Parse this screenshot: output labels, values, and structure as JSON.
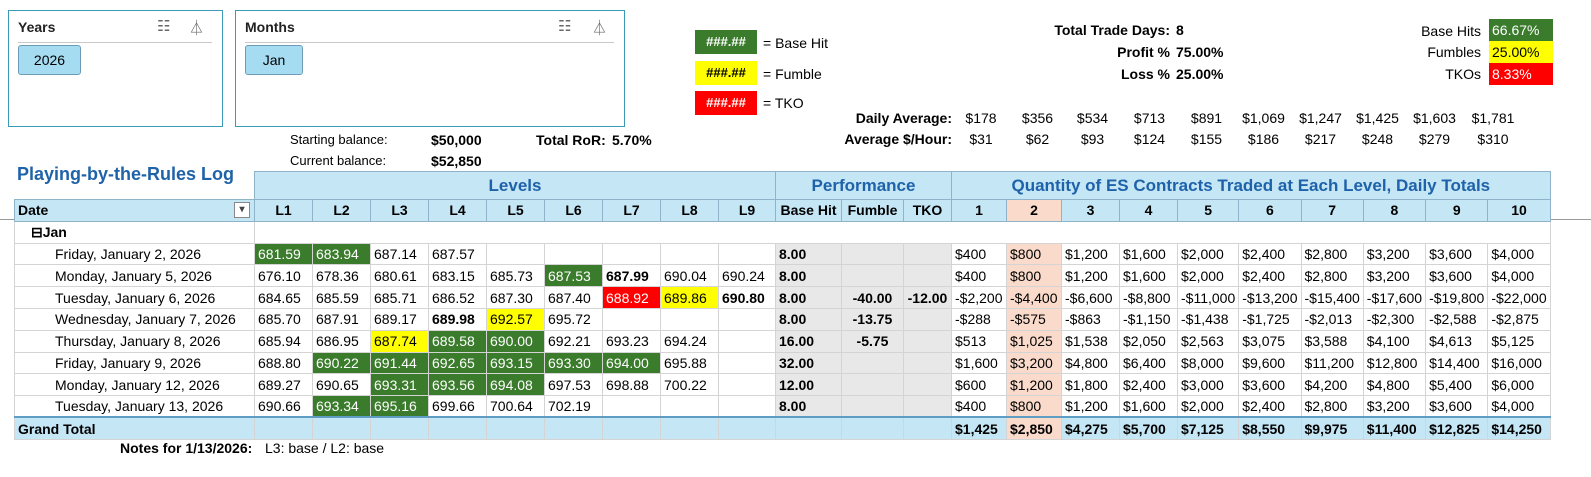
{
  "slicers": [
    {
      "title": "Years",
      "selected": "2026"
    },
    {
      "title": "Months",
      "selected": "Jan"
    }
  ],
  "legend": [
    {
      "sample": "###.##",
      "label": "= Base Hit",
      "color": "#3a7b2c"
    },
    {
      "sample": "###.##",
      "label": "= Fumble",
      "color": "#ffff00"
    },
    {
      "sample": "###.##",
      "label": "= TKO",
      "color": "#ff0000"
    }
  ],
  "balances": {
    "starting_label": "Starting balance:",
    "starting_value": "$50,000",
    "current_label": "Current balance:",
    "current_value": "$52,850",
    "ror_label": "Total RoR:",
    "ror_value": "5.70%"
  },
  "summary": {
    "trade_days_label": "Total Trade Days:",
    "trade_days_value": "8",
    "profit_label": "Profit %",
    "profit_value": "75.00%",
    "loss_label": "Loss %",
    "loss_value": "25.00%"
  },
  "outcomes": [
    {
      "label": "Base Hits",
      "value": "66.67%",
      "color": "#3a7b2c"
    },
    {
      "label": "Fumbles",
      "value": "25.00%",
      "color": "#ffff00"
    },
    {
      "label": "TKOs",
      "value": "8.33%",
      "color": "#ff0000"
    }
  ],
  "daily_average": {
    "label": "Daily Average:",
    "values": [
      "$178",
      "$356",
      "$534",
      "$713",
      "$891",
      "$1,069",
      "$1,247",
      "$1,425",
      "$1,603",
      "$1,781"
    ]
  },
  "avg_per_hour": {
    "label": "Average $/Hour:",
    "values": [
      "$31",
      "$62",
      "$93",
      "$124",
      "$155",
      "$186",
      "$217",
      "$248",
      "$279",
      "$310"
    ]
  },
  "log": {
    "title": "Playing-by-the-Rules Log",
    "group_levels": "Levels",
    "group_performance": "Performance",
    "group_quantity": "Quantity of ES Contracts Traded at Each Level, Daily Totals",
    "date_header": "Date",
    "level_headers": [
      "L1",
      "L2",
      "L3",
      "L4",
      "L5",
      "L6",
      "L7",
      "L8",
      "L9"
    ],
    "perf_headers": [
      "Base Hit",
      "Fumble",
      "TKO"
    ],
    "qty_headers": [
      "1",
      "2",
      "3",
      "4",
      "5",
      "6",
      "7",
      "8",
      "9",
      "10"
    ],
    "month_group": "Jan",
    "rows": [
      {
        "date": "Friday, January 2, 2026",
        "levels": [
          "681.59",
          "683.94",
          "687.14",
          "687.57",
          "",
          "",
          "",
          "",
          ""
        ],
        "perf": [
          "8.00",
          "",
          ""
        ],
        "qty": [
          "$400",
          "$800",
          "$1,200",
          "$1,600",
          "$2,000",
          "$2,400",
          "$2,800",
          "$3,200",
          "$3,600",
          "$4,000"
        ]
      },
      {
        "date": "Monday, January 5, 2026",
        "levels": [
          "676.10",
          "678.36",
          "680.61",
          "683.15",
          "685.73",
          "687.53",
          "687.99",
          "690.04",
          "690.24"
        ],
        "perf": [
          "8.00",
          "",
          ""
        ],
        "qty": [
          "$400",
          "$800",
          "$1,200",
          "$1,600",
          "$2,000",
          "$2,400",
          "$2,800",
          "$3,200",
          "$3,600",
          "$4,000"
        ]
      },
      {
        "date": "Tuesday, January 6, 2026",
        "levels": [
          "684.65",
          "685.59",
          "685.71",
          "686.52",
          "687.30",
          "687.40",
          "688.92",
          "689.86",
          "690.80"
        ],
        "perf": [
          "8.00",
          "-40.00",
          "-12.00"
        ],
        "qty": [
          "-$2,200",
          "-$4,400",
          "-$6,600",
          "-$8,800",
          "-$11,000",
          "-$13,200",
          "-$15,400",
          "-$17,600",
          "-$19,800",
          "-$22,000"
        ]
      },
      {
        "date": "Wednesday, January 7, 2026",
        "levels": [
          "685.70",
          "687.91",
          "689.17",
          "689.98",
          "692.57",
          "695.72",
          "",
          "",
          ""
        ],
        "perf": [
          "8.00",
          "-13.75",
          ""
        ],
        "qty": [
          "-$288",
          "-$575",
          "-$863",
          "-$1,150",
          "-$1,438",
          "-$1,725",
          "-$2,013",
          "-$2,300",
          "-$2,588",
          "-$2,875"
        ]
      },
      {
        "date": "Thursday, January 8, 2026",
        "levels": [
          "685.94",
          "686.95",
          "687.74",
          "689.58",
          "690.00",
          "692.21",
          "693.23",
          "694.24",
          ""
        ],
        "perf": [
          "16.00",
          "-5.75",
          ""
        ],
        "qty": [
          "$513",
          "$1,025",
          "$1,538",
          "$2,050",
          "$2,563",
          "$3,075",
          "$3,588",
          "$4,100",
          "$4,613",
          "$5,125"
        ]
      },
      {
        "date": "Friday, January 9, 2026",
        "levels": [
          "688.80",
          "690.22",
          "691.44",
          "692.65",
          "693.15",
          "693.30",
          "694.00",
          "695.88",
          ""
        ],
        "perf": [
          "32.00",
          "",
          ""
        ],
        "qty": [
          "$1,600",
          "$3,200",
          "$4,800",
          "$6,400",
          "$8,000",
          "$9,600",
          "$11,200",
          "$12,800",
          "$14,400",
          "$16,000"
        ]
      },
      {
        "date": "Monday, January 12, 2026",
        "levels": [
          "689.27",
          "690.65",
          "693.31",
          "693.56",
          "694.08",
          "697.53",
          "698.88",
          "700.22",
          ""
        ],
        "perf": [
          "12.00",
          "",
          ""
        ],
        "qty": [
          "$600",
          "$1,200",
          "$1,800",
          "$2,400",
          "$3,000",
          "$3,600",
          "$4,200",
          "$4,800",
          "$5,400",
          "$6,000"
        ]
      },
      {
        "date": "Tuesday, January 13, 2026",
        "levels": [
          "690.66",
          "693.34",
          "695.16",
          "699.66",
          "700.64",
          "702.19",
          "",
          "",
          ""
        ],
        "perf": [
          "8.00",
          "",
          ""
        ],
        "qty": [
          "$400",
          "$800",
          "$1,200",
          "$1,600",
          "$2,000",
          "$2,400",
          "$2,800",
          "$3,200",
          "$3,600",
          "$4,000"
        ]
      }
    ],
    "grand_total_label": "Grand Total",
    "grand_total_qty": [
      "$1,425",
      "$2,850",
      "$4,275",
      "$5,700",
      "$7,125",
      "$8,550",
      "$9,975",
      "$11,400",
      "$12,825",
      "$14,250"
    ],
    "notes_label": "Notes for 1/13/2026:",
    "notes_text": "L3: base / L2: base"
  }
}
